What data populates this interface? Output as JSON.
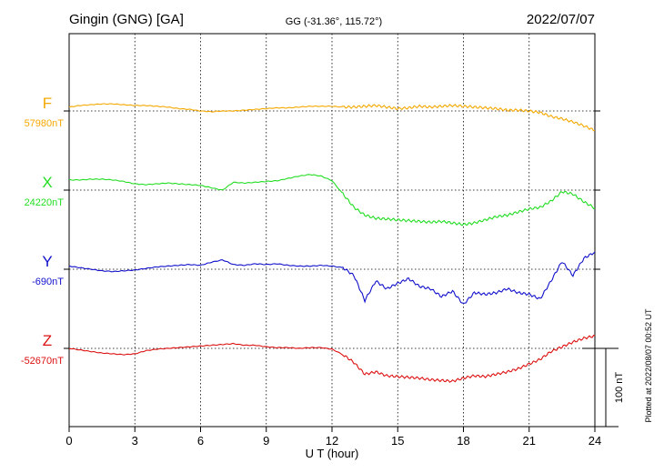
{
  "chart_data": {
    "type": "line",
    "title_left": "Gingin (GNG)  [GA]",
    "title_center": "GG (-31.36°, 115.72°)",
    "title_right": "2022/07/07",
    "xlabel": "U T (hour)",
    "xlim": [
      0,
      24
    ],
    "x_ticks": [
      "0",
      "3",
      "6",
      "9",
      "12",
      "15",
      "18",
      "21",
      "24"
    ],
    "grid": true,
    "scale_label": "100 nT",
    "plotted_note": "Plotted at 2022/08/07 00:52 UT",
    "series": [
      {
        "name": "F",
        "baseline_label": "57980nT",
        "color": "#f5a800",
        "x": [
          0,
          0.5,
          1,
          1.5,
          2,
          2.5,
          3,
          3.5,
          4,
          4.5,
          5,
          5.5,
          6,
          6.5,
          7,
          7.5,
          8,
          8.5,
          9,
          9.5,
          10,
          10.5,
          11,
          11.5,
          12,
          12.5,
          13,
          13.5,
          14,
          14.5,
          15,
          15.5,
          16,
          16.5,
          17,
          17.5,
          18,
          18.5,
          19,
          19.5,
          20,
          20.5,
          21,
          21.5,
          22,
          22.5,
          23,
          23.5,
          24
        ],
        "y": [
          5,
          7,
          8,
          9,
          9,
          8,
          7,
          7,
          6,
          5,
          3,
          2,
          0,
          -1,
          0,
          0,
          1,
          2,
          3,
          4,
          4,
          5,
          6,
          6,
          6,
          5,
          5,
          6,
          7,
          5,
          3,
          4,
          6,
          5,
          6,
          7,
          6,
          5,
          4,
          3,
          1,
          1,
          0,
          -2,
          -7,
          -10,
          -14,
          -19,
          -25
        ]
      },
      {
        "name": "X",
        "baseline_label": "24220nT",
        "color": "#22dd22",
        "x": [
          0,
          0.5,
          1,
          1.5,
          2,
          2.5,
          3,
          3.5,
          4,
          4.5,
          5,
          5.5,
          6,
          6.5,
          7,
          7.5,
          8,
          8.5,
          9,
          9.5,
          10,
          10.5,
          11,
          11.5,
          12,
          12.5,
          13,
          13.5,
          14,
          14.5,
          15,
          15.5,
          16,
          16.5,
          17,
          17.5,
          18,
          18.5,
          19,
          19.5,
          20,
          20.5,
          21,
          21.5,
          22,
          22.5,
          23,
          23.5,
          24
        ],
        "y": [
          13,
          13,
          14,
          14,
          13,
          11,
          8,
          7,
          8,
          9,
          8,
          7,
          6,
          3,
          0,
          10,
          9,
          10,
          11,
          12,
          15,
          18,
          20,
          18,
          12,
          -5,
          -22,
          -32,
          -36,
          -37,
          -38,
          -39,
          -40,
          -41,
          -40,
          -42,
          -44,
          -42,
          -38,
          -34,
          -32,
          -28,
          -24,
          -22,
          -14,
          -2,
          -5,
          -15,
          -23
        ]
      },
      {
        "name": "Y",
        "baseline_label": "-690nT",
        "color": "#1111cc",
        "x": [
          0,
          0.5,
          1,
          1.5,
          2,
          2.5,
          3,
          3.5,
          4,
          4.5,
          5,
          5.5,
          6,
          6.5,
          7,
          7.5,
          8,
          8.5,
          9,
          9.5,
          10,
          10.5,
          11,
          11.5,
          12,
          12.5,
          13,
          13.5,
          14,
          14.5,
          15,
          15.5,
          16,
          16.5,
          17,
          17.5,
          18,
          18.5,
          19,
          19.5,
          20,
          20.5,
          21,
          21.5,
          22,
          22.5,
          23,
          23.5,
          24
        ],
        "y": [
          4,
          2,
          0,
          -2,
          -3,
          -2,
          -1,
          1,
          3,
          4,
          5,
          6,
          5,
          9,
          12,
          6,
          5,
          7,
          6,
          7,
          5,
          4,
          4,
          5,
          4,
          2,
          -8,
          -40,
          -15,
          -25,
          -18,
          -12,
          -22,
          -25,
          -35,
          -28,
          -45,
          -30,
          -32,
          -30,
          -25,
          -30,
          -32,
          -38,
          -15,
          10,
          -8,
          14,
          22
        ]
      },
      {
        "name": "Z",
        "baseline_label": "-52670nT",
        "color": "#dd1111",
        "x": [
          0,
          0.5,
          1,
          1.5,
          2,
          2.5,
          3,
          3.5,
          4,
          4.5,
          5,
          5.5,
          6,
          6.5,
          7,
          7.5,
          8,
          8.5,
          9,
          9.5,
          10,
          10.5,
          11,
          11.5,
          12,
          12.5,
          13,
          13.5,
          14,
          14.5,
          15,
          15.5,
          16,
          16.5,
          17,
          17.5,
          18,
          18.5,
          19,
          19.5,
          20,
          20.5,
          21,
          21.5,
          22,
          22.5,
          23,
          23.5,
          24
        ],
        "y": [
          0,
          -2,
          -4,
          -6,
          -7,
          -8,
          -7,
          -3,
          -1,
          0,
          1,
          2,
          3,
          4,
          5,
          6,
          4,
          4,
          2,
          1,
          1,
          0,
          1,
          1,
          -1,
          -8,
          -18,
          -33,
          -30,
          -35,
          -36,
          -37,
          -38,
          -40,
          -41,
          -42,
          -38,
          -35,
          -36,
          -33,
          -30,
          -26,
          -20,
          -14,
          -4,
          2,
          8,
          13,
          16
        ]
      }
    ]
  }
}
